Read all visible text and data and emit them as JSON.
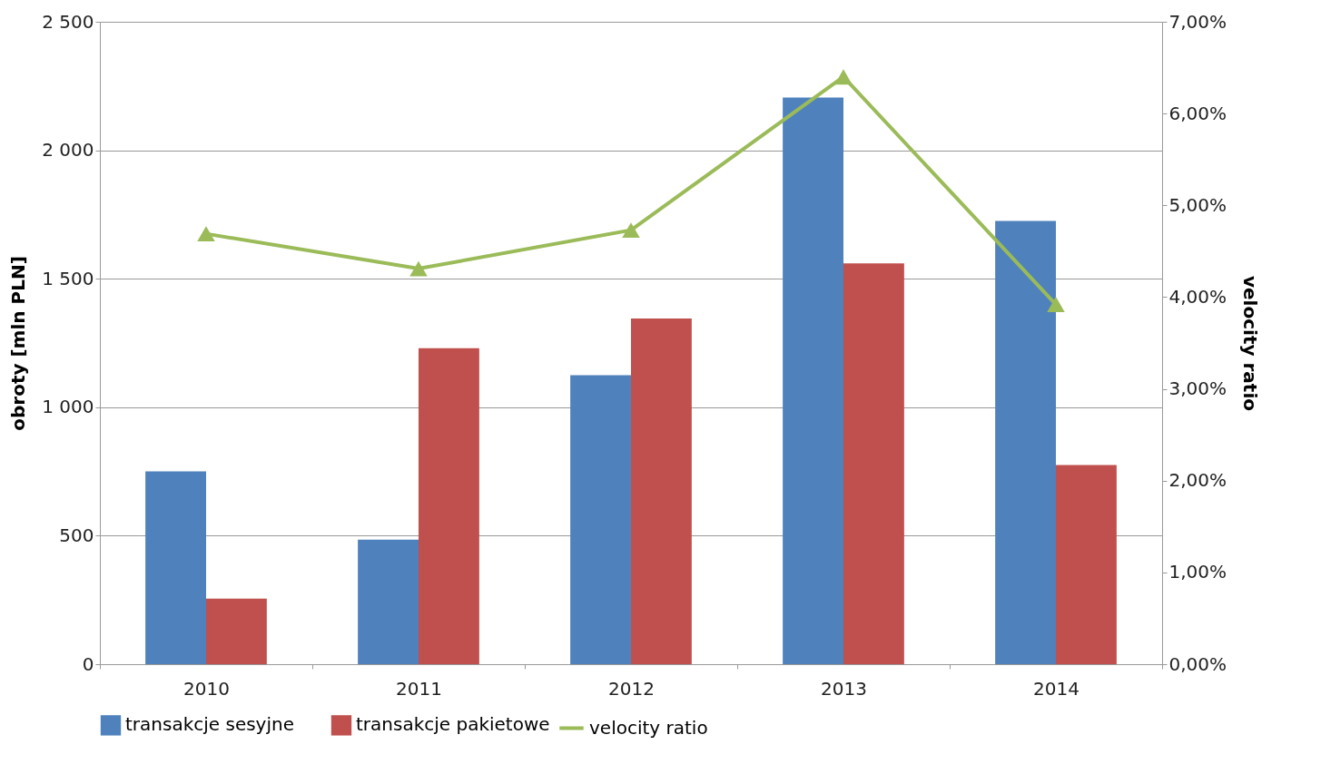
{
  "chart_data": {
    "type": "bar",
    "ylabel": "obroty [mln PLN]",
    "y2label": "velocity ratio",
    "categories": [
      "2010",
      "2011",
      "2012",
      "2013",
      "2014"
    ],
    "series": [
      {
        "name": "transakcje sesyjne",
        "color": "#4f81bd",
        "values": [
          750,
          485,
          1125,
          2205,
          1725
        ]
      },
      {
        "name": "transakcje pakietowe",
        "color": "#c0504d",
        "values": [
          255,
          1230,
          1345,
          1560,
          775
        ]
      },
      {
        "name": "velocity ratio",
        "color": "#9bbb59",
        "type": "line",
        "axis": "y2",
        "marker": "triangle",
        "values": [
          4.69,
          4.31,
          4.73,
          6.4,
          3.92
        ]
      }
    ],
    "ylim": [
      0,
      2500
    ],
    "yticks": [
      {
        "value": 0,
        "label": "0"
      },
      {
        "value": 500,
        "label": "500"
      },
      {
        "value": 1000,
        "label": "1 000"
      },
      {
        "value": 1500,
        "label": "1 500"
      },
      {
        "value": 2000,
        "label": "2 000"
      },
      {
        "value": 2500,
        "label": "2 500"
      }
    ],
    "y2lim": [
      0,
      7
    ],
    "y2ticks": [
      {
        "value": 0,
        "label": "0,00%"
      },
      {
        "value": 1,
        "label": "1,00%"
      },
      {
        "value": 2,
        "label": "2,00%"
      },
      {
        "value": 3,
        "label": "3,00%"
      },
      {
        "value": 4,
        "label": "4,00%"
      },
      {
        "value": 5,
        "label": "5,00%"
      },
      {
        "value": 6,
        "label": "6,00%"
      },
      {
        "value": 7,
        "label": "7,00%"
      }
    ],
    "grid": "y",
    "legend": "bottom"
  }
}
